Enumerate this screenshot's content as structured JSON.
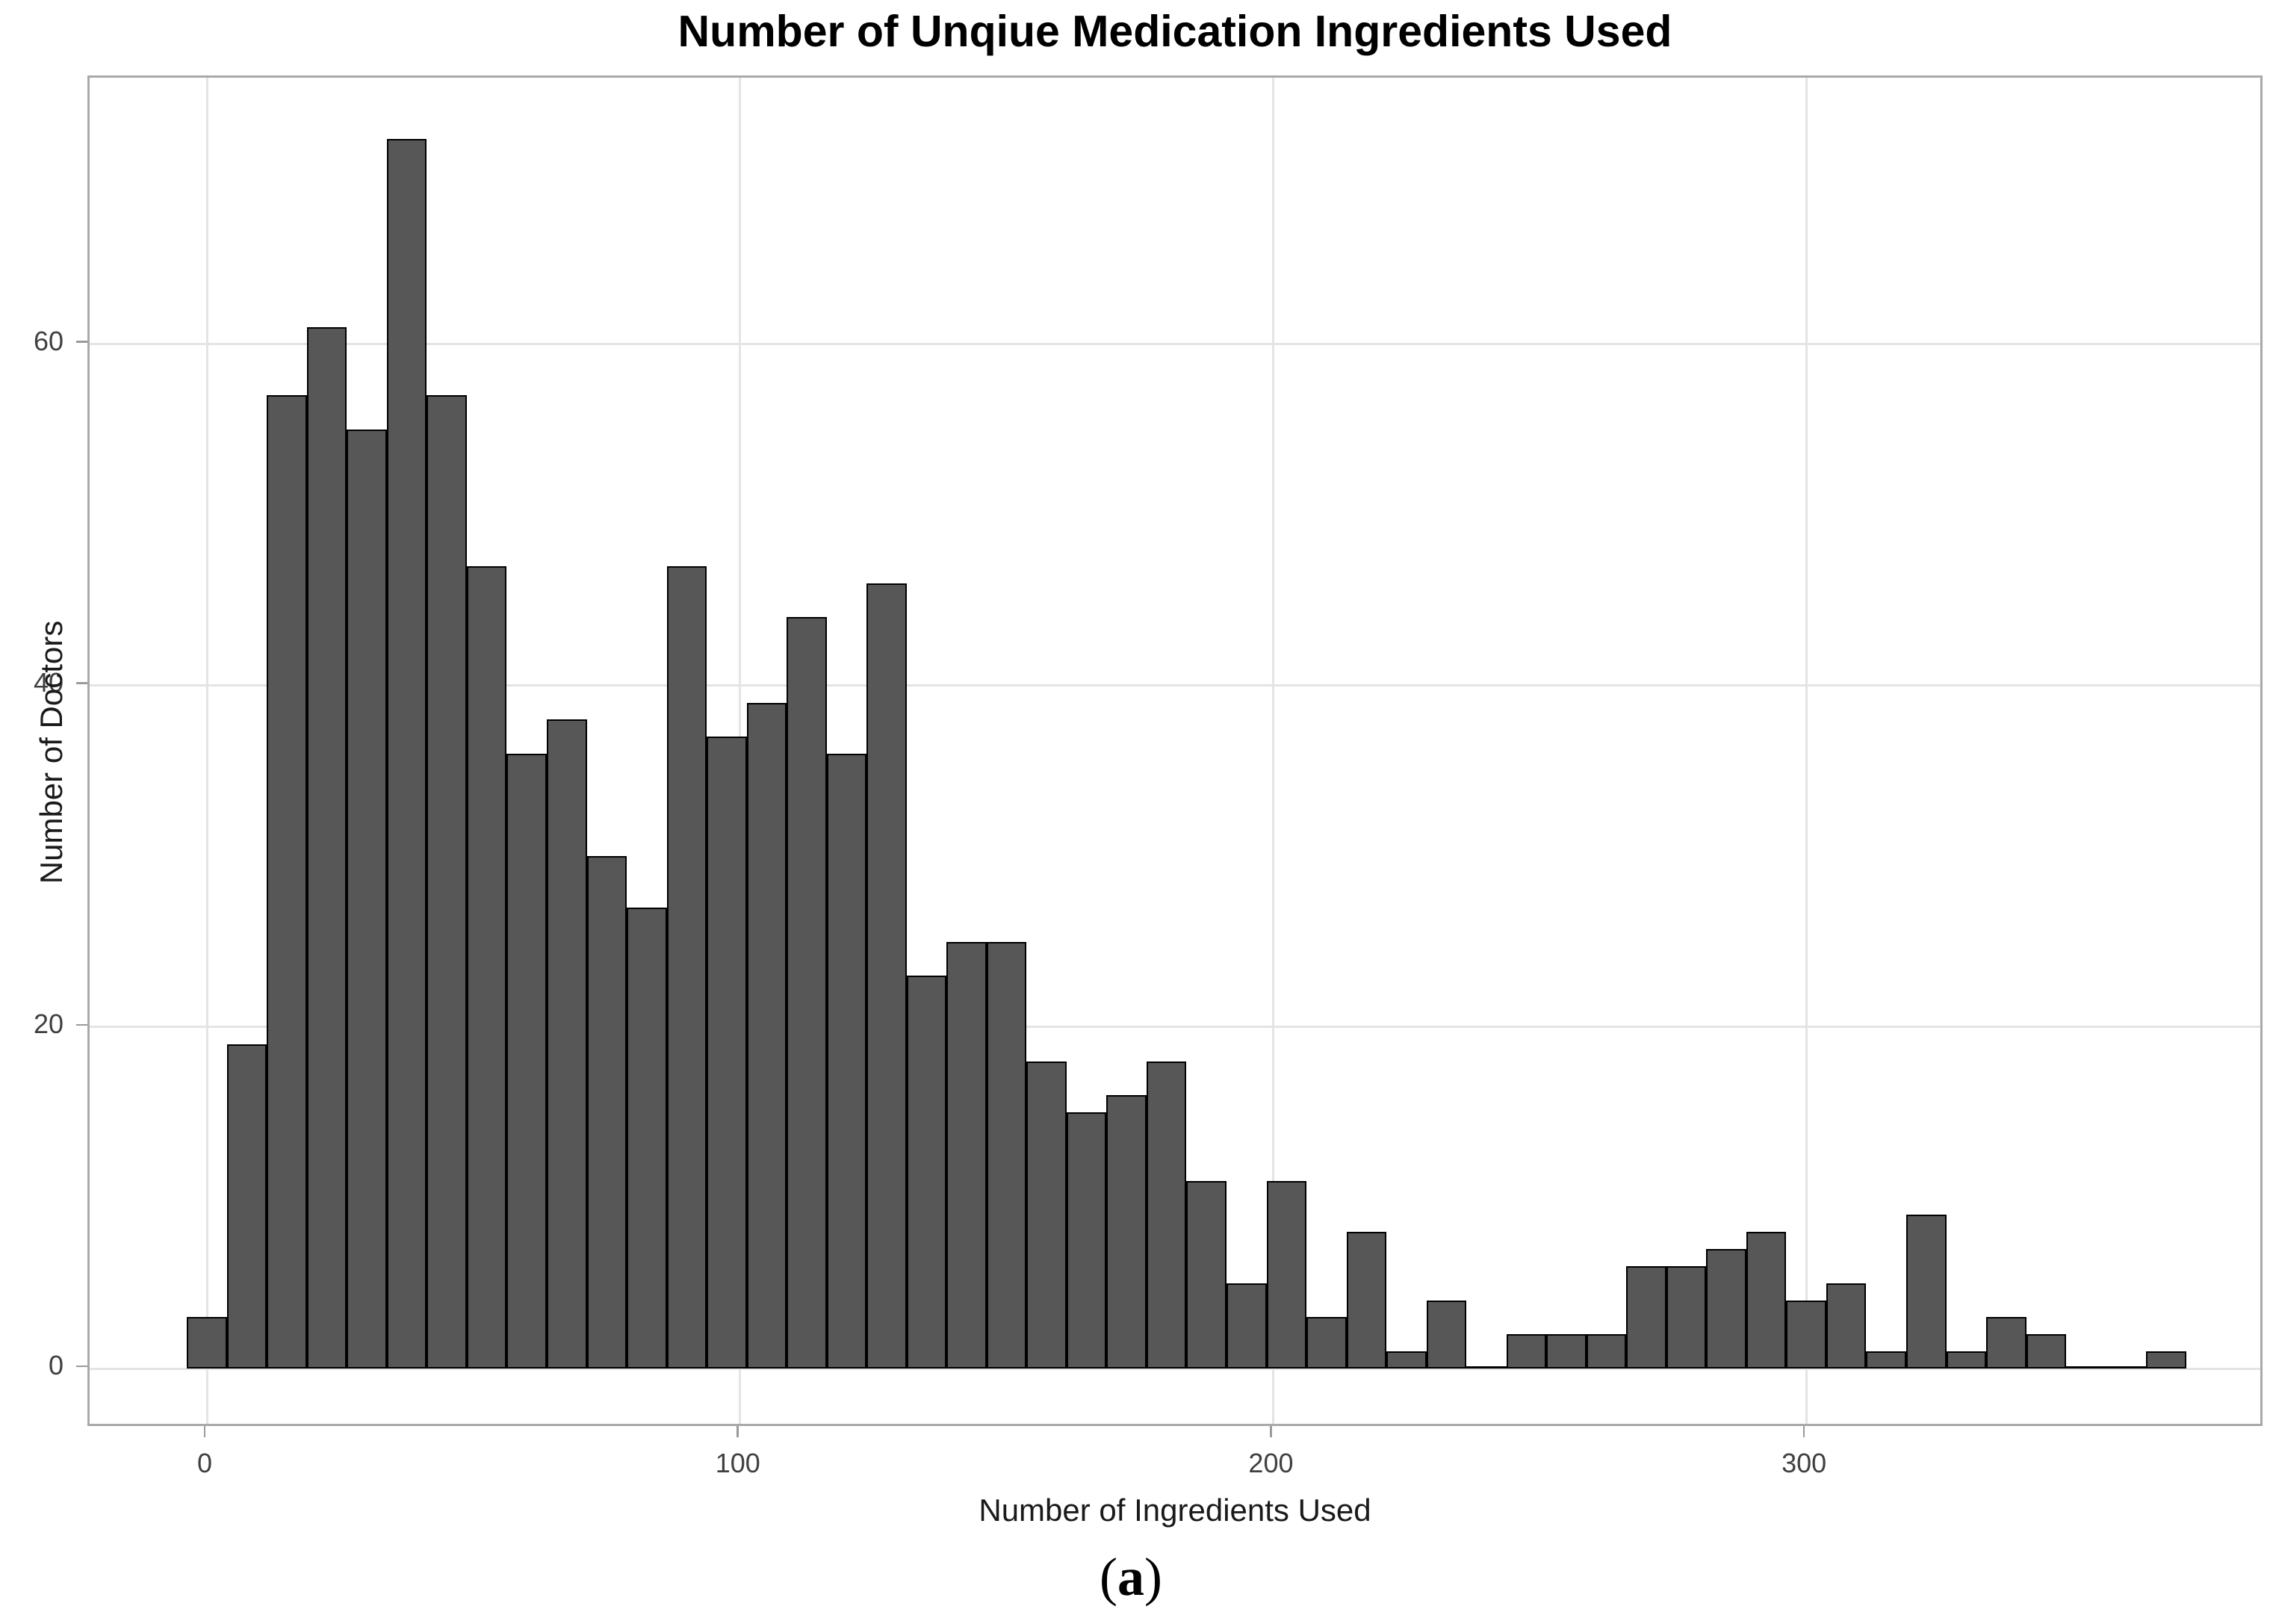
{
  "chart_data": {
    "type": "bar",
    "subtype": "histogram",
    "title": "Number of Unqiue Medication Ingredients Used",
    "xlabel": "Number of Ingredients Used",
    "ylabel": "Number of Doctors",
    "caption": {
      "open": "(",
      "letter": "a",
      "close": ")"
    },
    "bin_width": 7.5,
    "bin_centers_start": 0,
    "bin_centers_step": 7.5,
    "counts": [
      3,
      19,
      57,
      61,
      55,
      72,
      57,
      47,
      36,
      38,
      30,
      27,
      47,
      37,
      39,
      44,
      36,
      46,
      23,
      25,
      25,
      18,
      15,
      16,
      18,
      11,
      5,
      11,
      3,
      8,
      1,
      4,
      0,
      2,
      2,
      2,
      6,
      6,
      7,
      8,
      4,
      5,
      1,
      9,
      1,
      3,
      2,
      0,
      0,
      1
    ],
    "x_ticks": [
      0,
      100,
      200,
      300
    ],
    "y_ticks": [
      0,
      20,
      40,
      60
    ],
    "x_domain": [
      -22,
      386
    ],
    "y_domain": [
      -3.5,
      75.6
    ],
    "grid": "major-only",
    "legend": "none",
    "colors": {
      "bar_fill": "#575757",
      "bar_stroke": "#000000",
      "gridline": "#e4e4e4",
      "panel_border": "#a9a9a9",
      "tick_mark": "#9a9a9a",
      "tick_label": "#404040",
      "axis_title": "#1a1a1a",
      "title": "#000000",
      "background": "#ffffff"
    }
  }
}
